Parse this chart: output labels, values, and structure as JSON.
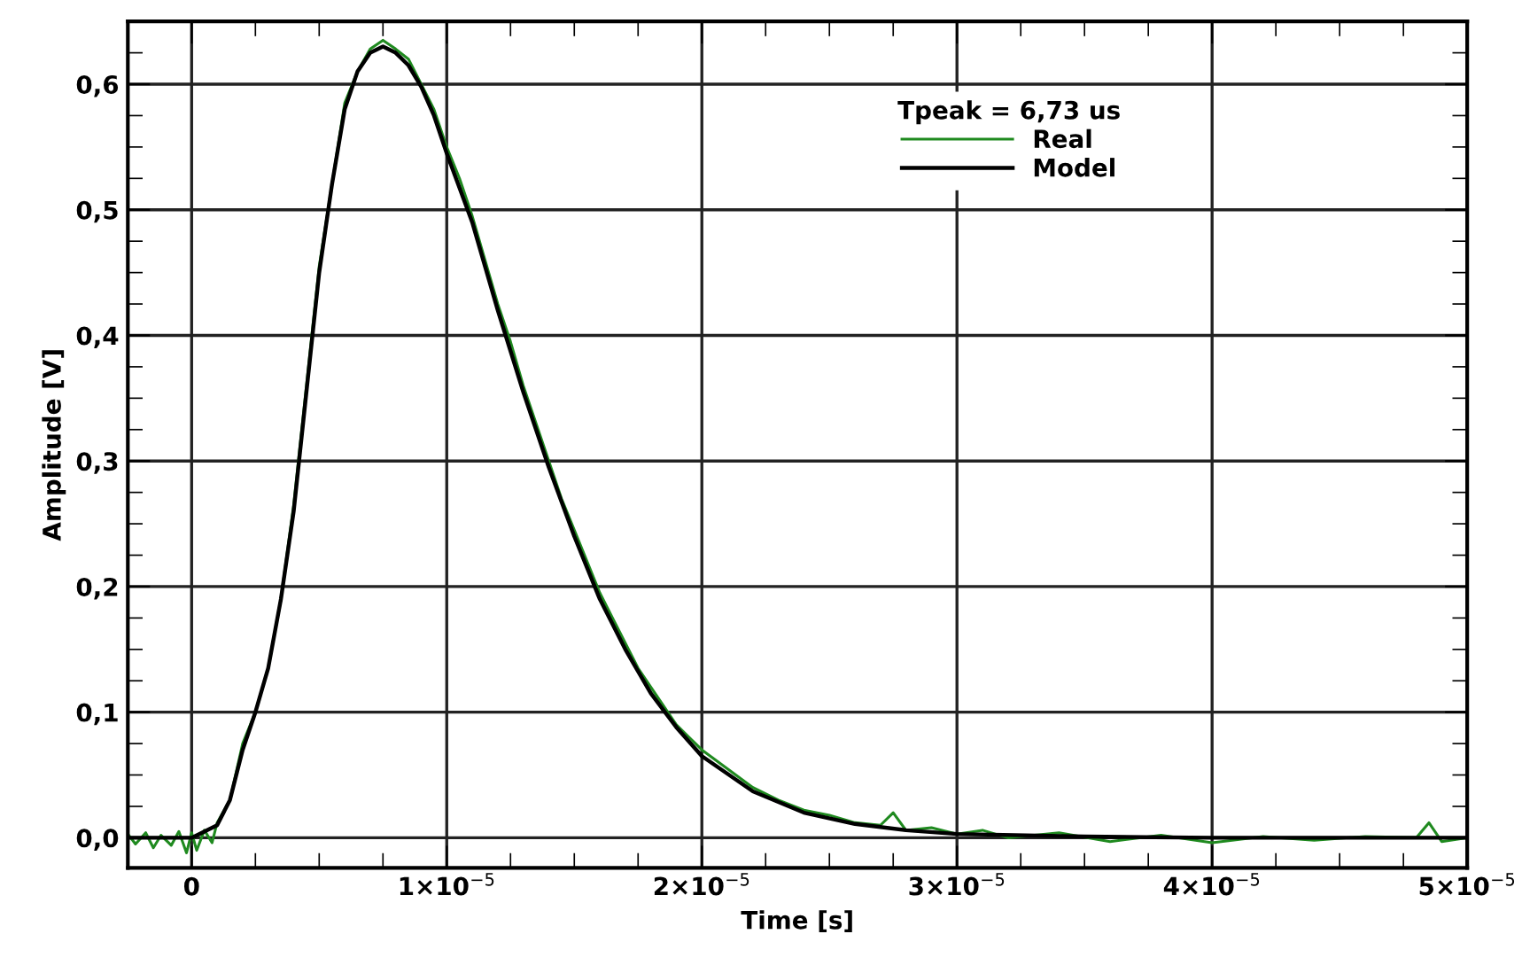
{
  "chart_data": {
    "type": "line",
    "xlabel": "Time [s]",
    "ylabel": "Amplitude [V]",
    "legend_title": "Tpeak = 6,73 us",
    "legend": "top right",
    "grid": true,
    "xlim": [
      -2.5e-06,
      5e-05
    ],
    "ylim": [
      -0.024,
      0.65
    ],
    "xticks": [
      {
        "value": 0,
        "label": "0"
      },
      {
        "value": 1e-05,
        "label": "1×10$^{−5}$"
      },
      {
        "value": 2e-05,
        "label": "2×10$^{−5}$"
      },
      {
        "value": 3e-05,
        "label": "3×10$^{−5}$"
      },
      {
        "value": 4e-05,
        "label": "4×10$^{−5}$"
      },
      {
        "value": 5e-05,
        "label": "5×10$^{−5}$"
      },
      {
        "value": 2.5e-06,
        "label": null
      },
      {
        "value": 5e-06,
        "label": null
      },
      {
        "value": 7.5e-06,
        "label": null
      },
      {
        "value": 1.25e-05,
        "label": null
      },
      {
        "value": 1.5e-05,
        "label": null
      },
      {
        "value": 1.75e-05,
        "label": null
      },
      {
        "value": 2.25e-05,
        "label": null
      },
      {
        "value": 2.5e-05,
        "label": null
      },
      {
        "value": 2.75e-05,
        "label": null
      },
      {
        "value": 3.25e-05,
        "label": null
      },
      {
        "value": 3.5e-05,
        "label": null
      },
      {
        "value": 3.75e-05,
        "label": null
      },
      {
        "value": 4.25e-05,
        "label": null
      },
      {
        "value": 4.5e-05,
        "label": null
      },
      {
        "value": 4.75e-05,
        "label": null
      }
    ],
    "yticks": [
      {
        "value": 0,
        "label": "0,0"
      },
      {
        "value": 0.1,
        "label": "0,1"
      },
      {
        "value": 0.2,
        "label": "0,2"
      },
      {
        "value": 0.3,
        "label": "0,3"
      },
      {
        "value": 0.4,
        "label": "0,4"
      },
      {
        "value": 0.5,
        "label": "0,5"
      },
      {
        "value": 0.6,
        "label": "0,6"
      },
      {
        "value": 0.025,
        "label": null
      },
      {
        "value": 0.05,
        "label": null
      },
      {
        "value": 0.075,
        "label": null
      },
      {
        "value": 0.125,
        "label": null
      },
      {
        "value": 0.15,
        "label": null
      },
      {
        "value": 0.175,
        "label": null
      },
      {
        "value": 0.225,
        "label": null
      },
      {
        "value": 0.25,
        "label": null
      },
      {
        "value": 0.275,
        "label": null
      },
      {
        "value": 0.325,
        "label": null
      },
      {
        "value": 0.35,
        "label": null
      },
      {
        "value": 0.375,
        "label": null
      },
      {
        "value": 0.425,
        "label": null
      },
      {
        "value": 0.45,
        "label": null
      },
      {
        "value": 0.475,
        "label": null
      },
      {
        "value": 0.525,
        "label": null
      },
      {
        "value": 0.55,
        "label": null
      },
      {
        "value": 0.575,
        "label": null
      },
      {
        "value": 0.625,
        "label": null
      }
    ],
    "series": [
      {
        "name": "Real",
        "color": "#1f8a1f",
        "x": [
          -2.5e-06,
          -2.2e-06,
          -1.8e-06,
          -1.5e-06,
          -1.2e-06,
          -8e-07,
          -5e-07,
          -2e-07,
          0,
          2e-07,
          5e-07,
          8e-07,
          1e-06,
          1.5e-06,
          2e-06,
          2.5e-06,
          3e-06,
          3.5e-06,
          4e-06,
          4.5e-06,
          5e-06,
          5.5e-06,
          6e-06,
          6.5e-06,
          7e-06,
          7.5e-06,
          8e-06,
          8.5e-06,
          9e-06,
          9.5e-06,
          1e-05,
          1.05e-05,
          1.1e-05,
          1.15e-05,
          1.2e-05,
          1.25e-05,
          1.3e-05,
          1.35e-05,
          1.4e-05,
          1.45e-05,
          1.5e-05,
          1.55e-05,
          1.6e-05,
          1.65e-05,
          1.7e-05,
          1.75e-05,
          1.8e-05,
          1.85e-05,
          1.9e-05,
          1.95e-05,
          2e-05,
          2.1e-05,
          2.2e-05,
          2.3e-05,
          2.4e-05,
          2.5e-05,
          2.6e-05,
          2.7e-05,
          2.75e-05,
          2.8e-05,
          2.9e-05,
          3e-05,
          3.1e-05,
          3.2e-05,
          3.4e-05,
          3.6e-05,
          3.8e-05,
          4e-05,
          4.2e-05,
          4.4e-05,
          4.6e-05,
          4.8e-05,
          4.85e-05,
          4.9e-05,
          5e-05
        ],
        "values": [
          0.003,
          -0.005,
          0.004,
          -0.008,
          0.002,
          -0.006,
          0.005,
          -0.012,
          0.004,
          -0.01,
          0.006,
          -0.004,
          0.012,
          0.03,
          0.075,
          0.1,
          0.135,
          0.19,
          0.265,
          0.36,
          0.455,
          0.52,
          0.585,
          0.61,
          0.628,
          0.635,
          0.628,
          0.62,
          0.6,
          0.58,
          0.55,
          0.525,
          0.495,
          0.46,
          0.425,
          0.395,
          0.36,
          0.33,
          0.3,
          0.27,
          0.245,
          0.22,
          0.195,
          0.175,
          0.155,
          0.135,
          0.12,
          0.105,
          0.09,
          0.08,
          0.07,
          0.055,
          0.04,
          0.03,
          0.022,
          0.018,
          0.012,
          0.01,
          0.02,
          0.006,
          0.008,
          0.003,
          0.006,
          0.0,
          0.004,
          -0.003,
          0.002,
          -0.004,
          0.001,
          -0.002,
          0.001,
          0.0,
          0.012,
          -0.003,
          0.0
        ]
      },
      {
        "name": "Model",
        "color": "#000000",
        "x": [
          -2.5e-06,
          0,
          1e-06,
          1.5e-06,
          2e-06,
          2.5e-06,
          3e-06,
          3.5e-06,
          4e-06,
          4.5e-06,
          5e-06,
          5.5e-06,
          6e-06,
          6.5e-06,
          7e-06,
          7.5e-06,
          8e-06,
          8.5e-06,
          9e-06,
          9.5e-06,
          1e-05,
          1.1e-05,
          1.2e-05,
          1.3e-05,
          1.4e-05,
          1.5e-05,
          1.6e-05,
          1.7e-05,
          1.8e-05,
          1.9e-05,
          2e-05,
          2.2e-05,
          2.4e-05,
          2.6e-05,
          2.8e-05,
          3e-05,
          3.5e-05,
          4e-05,
          5e-05
        ],
        "values": [
          0,
          0,
          0.01,
          0.03,
          0.07,
          0.1,
          0.135,
          0.19,
          0.26,
          0.355,
          0.45,
          0.52,
          0.58,
          0.61,
          0.625,
          0.63,
          0.625,
          0.615,
          0.598,
          0.575,
          0.545,
          0.49,
          0.42,
          0.355,
          0.295,
          0.24,
          0.19,
          0.15,
          0.115,
          0.088,
          0.065,
          0.037,
          0.02,
          0.011,
          0.006,
          0.003,
          0.001,
          0.0,
          0.0
        ]
      }
    ]
  }
}
